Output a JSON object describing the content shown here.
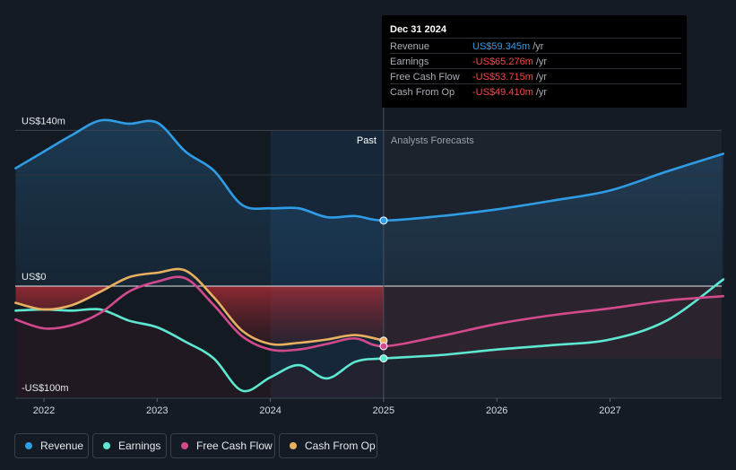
{
  "chart_data": {
    "type": "line",
    "y_axis": {
      "labels": [
        "US$140m",
        "US$0",
        "-US$100m"
      ]
    },
    "x_axis": {
      "ticks": [
        "2022",
        "2023",
        "2024",
        "2025",
        "2026",
        "2027"
      ]
    },
    "period_labels": {
      "past": "Past",
      "forecast": "Analysts Forecasts"
    },
    "series": [
      {
        "name": "Revenue",
        "color": "#2f9de6",
        "points": [
          [
            2021.75,
            106
          ],
          [
            2022.0,
            121
          ],
          [
            2022.25,
            136
          ],
          [
            2022.5,
            149
          ],
          [
            2022.75,
            146
          ],
          [
            2023.0,
            147
          ],
          [
            2023.25,
            121
          ],
          [
            2023.5,
            104
          ],
          [
            2023.75,
            73
          ],
          [
            2024.0,
            70
          ],
          [
            2024.25,
            70
          ],
          [
            2024.5,
            62
          ],
          [
            2024.75,
            63
          ],
          [
            2025.0,
            59
          ],
          [
            2025.5,
            63
          ],
          [
            2026.0,
            69
          ],
          [
            2026.5,
            77
          ],
          [
            2027.0,
            86
          ],
          [
            2027.5,
            103
          ],
          [
            2028.0,
            119
          ]
        ]
      },
      {
        "name": "Earnings",
        "color": "#5ee8d2",
        "points": [
          [
            2021.75,
            -22
          ],
          [
            2022.0,
            -21
          ],
          [
            2022.25,
            -22
          ],
          [
            2022.5,
            -21
          ],
          [
            2022.75,
            -31
          ],
          [
            2023.0,
            -37
          ],
          [
            2023.25,
            -50
          ],
          [
            2023.5,
            -65
          ],
          [
            2023.75,
            -94
          ],
          [
            2024.0,
            -82
          ],
          [
            2024.25,
            -71
          ],
          [
            2024.5,
            -83
          ],
          [
            2024.75,
            -68
          ],
          [
            2025.0,
            -65
          ],
          [
            2025.5,
            -62
          ],
          [
            2026.0,
            -57
          ],
          [
            2026.5,
            -53
          ],
          [
            2027.0,
            -48
          ],
          [
            2027.5,
            -31
          ],
          [
            2028.0,
            6
          ]
        ]
      },
      {
        "name": "Free Cash Flow",
        "color": "#d24a8c",
        "points": [
          [
            2021.75,
            -30
          ],
          [
            2022.0,
            -38
          ],
          [
            2022.25,
            -35
          ],
          [
            2022.5,
            -24
          ],
          [
            2022.75,
            -5
          ],
          [
            2023.0,
            4
          ],
          [
            2023.25,
            7
          ],
          [
            2023.5,
            -17
          ],
          [
            2023.75,
            -45
          ],
          [
            2024.0,
            -57
          ],
          [
            2024.25,
            -57
          ],
          [
            2024.5,
            -52
          ],
          [
            2024.75,
            -47
          ],
          [
            2025.0,
            -54
          ],
          [
            2025.5,
            -45
          ],
          [
            2026.0,
            -34
          ],
          [
            2026.5,
            -26
          ],
          [
            2027.0,
            -20
          ],
          [
            2027.5,
            -13
          ],
          [
            2028.0,
            -9
          ]
        ]
      },
      {
        "name": "Cash From Op",
        "color": "#e8b060",
        "points": [
          [
            2021.75,
            -15
          ],
          [
            2022.0,
            -21
          ],
          [
            2022.25,
            -17
          ],
          [
            2022.5,
            -5
          ],
          [
            2022.75,
            8
          ],
          [
            2023.0,
            12
          ],
          [
            2023.25,
            14
          ],
          [
            2023.5,
            -10
          ],
          [
            2023.75,
            -40
          ],
          [
            2024.0,
            -52
          ],
          [
            2024.25,
            -51
          ],
          [
            2024.5,
            -48
          ],
          [
            2024.75,
            -44
          ],
          [
            2025.0,
            -49
          ]
        ]
      }
    ]
  },
  "tooltip": {
    "date": "Dec 31 2024",
    "rows": [
      {
        "label": "Revenue",
        "value": "US$59.345m",
        "unit": "/yr",
        "color": "#2f9de6"
      },
      {
        "label": "Earnings",
        "value": "-US$65.276m",
        "unit": "/yr",
        "color": "#ef4a4a"
      },
      {
        "label": "Free Cash Flow",
        "value": "-US$53.715m",
        "unit": "/yr",
        "color": "#ef4a4a"
      },
      {
        "label": "Cash From Op",
        "value": "-US$49.410m",
        "unit": "/yr",
        "color": "#ef4a4a"
      }
    ]
  },
  "legend": [
    {
      "label": "Revenue",
      "color": "#2f9de6"
    },
    {
      "label": "Earnings",
      "color": "#5ee8d2"
    },
    {
      "label": "Free Cash Flow",
      "color": "#d24a8c"
    },
    {
      "label": "Cash From Op",
      "color": "#e8b060"
    }
  ]
}
